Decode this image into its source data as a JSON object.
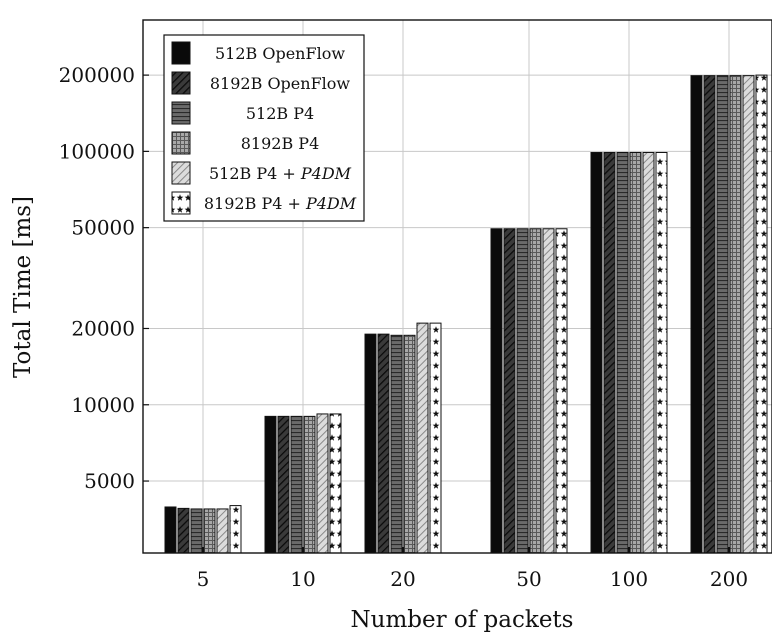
{
  "chart_data": {
    "type": "bar",
    "title": "",
    "xlabel": "Number of packets",
    "ylabel": "Total Time [ms]",
    "yscale": "log",
    "ylim": [
      2600,
      330000
    ],
    "yticks": [
      5000,
      10000,
      20000,
      50000,
      100000,
      200000
    ],
    "ytick_labels": [
      "5000",
      "10000",
      "20000",
      "50000",
      "100000",
      "200000"
    ],
    "categories": [
      "5",
      "10",
      "20",
      "50",
      "100",
      "200"
    ],
    "grid": true,
    "legend_position": "top-left",
    "series": [
      {
        "name": "512B OpenFlow",
        "legend_parts": [
          {
            "text": "512B OpenFlow",
            "italic": false
          }
        ],
        "pattern": "solid-black",
        "values": [
          3950,
          9000,
          19000,
          49500,
          99000,
          199000
        ]
      },
      {
        "name": "8192B OpenFlow",
        "legend_parts": [
          {
            "text": "8192B OpenFlow",
            "italic": false
          }
        ],
        "pattern": "dark-diagonal",
        "values": [
          3900,
          9000,
          19000,
          49500,
          99000,
          199000
        ]
      },
      {
        "name": "512B P4",
        "legend_parts": [
          {
            "text": "512B P4",
            "italic": false
          }
        ],
        "pattern": "dark-horizontal",
        "values": [
          3880,
          9000,
          18800,
          49500,
          99000,
          199000
        ]
      },
      {
        "name": "8192B P4",
        "legend_parts": [
          {
            "text": "8192B P4",
            "italic": false
          }
        ],
        "pattern": "grid",
        "values": [
          3880,
          9000,
          18800,
          49500,
          99000,
          199000
        ]
      },
      {
        "name": "512B P4 + P4DM",
        "legend_parts": [
          {
            "text": "512B P4 + ",
            "italic": false
          },
          {
            "text": "P4DM",
            "italic": true
          }
        ],
        "pattern": "light-diagonal",
        "values": [
          3880,
          9200,
          21000,
          49500,
          99000,
          199000
        ]
      },
      {
        "name": "8192B P4 + P4DM",
        "legend_parts": [
          {
            "text": "8192B P4 + ",
            "italic": false
          },
          {
            "text": "P4DM",
            "italic": true
          }
        ],
        "pattern": "stars",
        "values": [
          4000,
          9200,
          21000,
          49500,
          99000,
          200000
        ]
      }
    ]
  }
}
